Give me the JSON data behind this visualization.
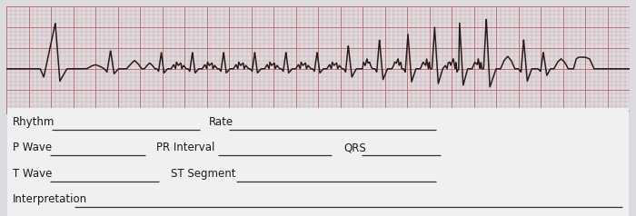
{
  "ecg_bg_color": "#f2c4c4",
  "ecg_grid_minor_color": "#d49090",
  "ecg_grid_major_color": "#c07070",
  "ecg_line_color": "#2a1a1a",
  "form_bg_color": "#dcdce0",
  "text_color": "#1a1a1a",
  "underline_color": "#333333",
  "font_size": 8.5,
  "labels": {
    "rhythm": "Rhythm",
    "rate": "Rate",
    "p_wave": "P Wave",
    "pr_interval": "PR Interval",
    "qrs": "QRS",
    "t_wave": "T Wave",
    "st_segment": "ST Segment",
    "interpretation": "Interpretation"
  }
}
